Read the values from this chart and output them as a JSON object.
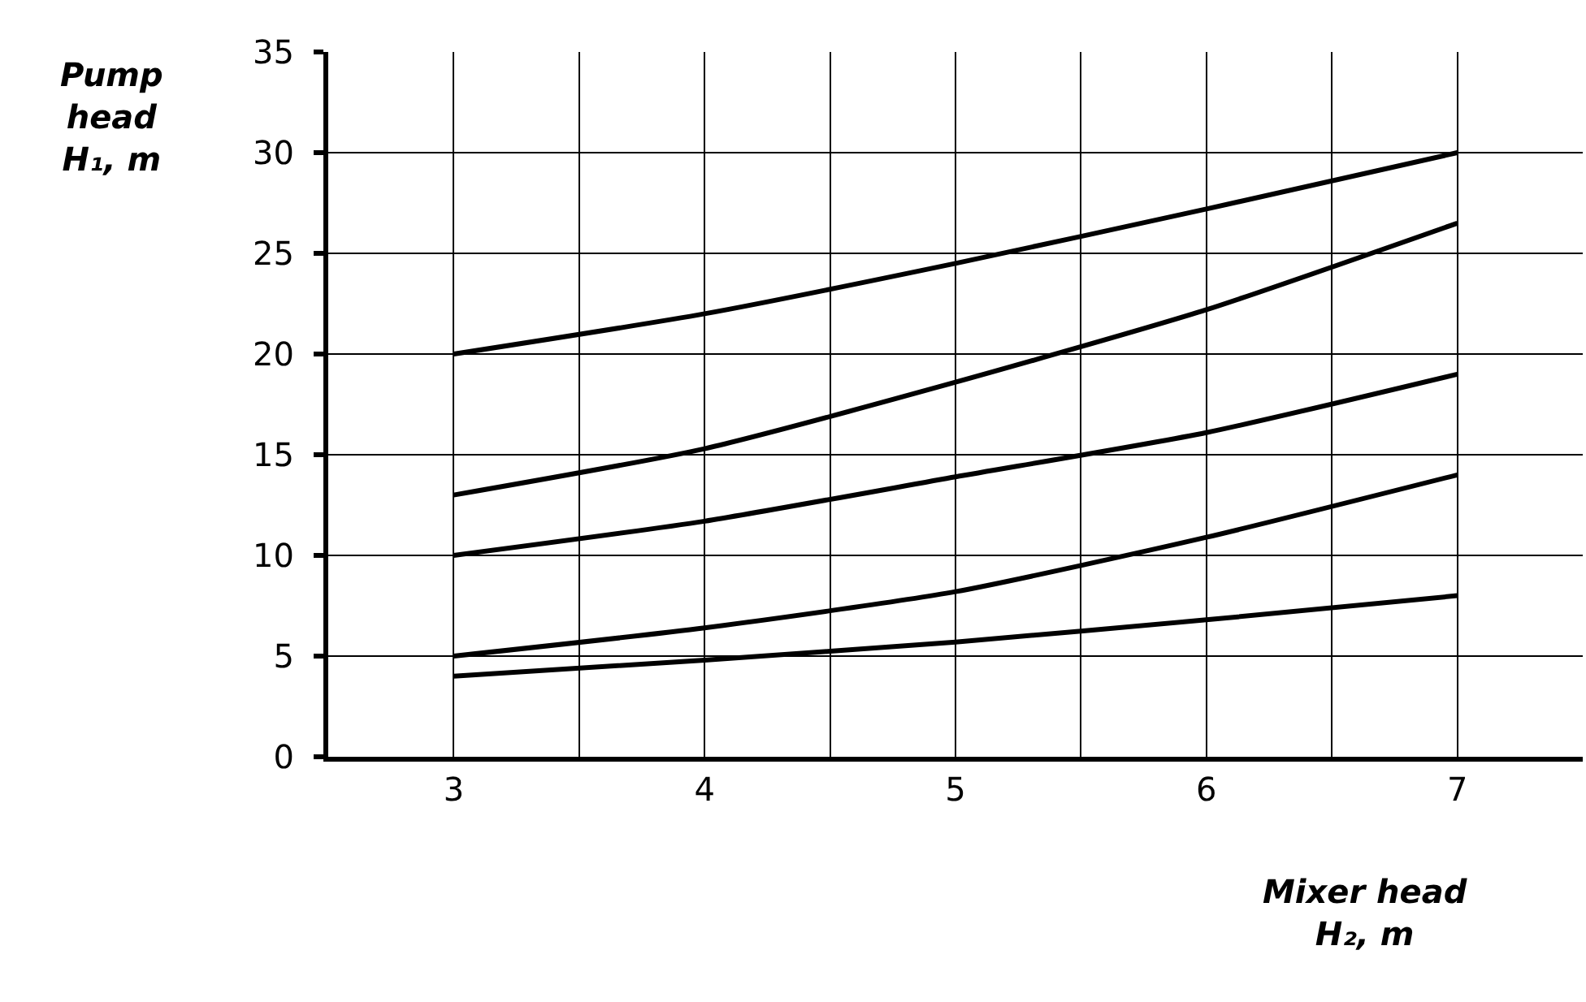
{
  "chart_data": {
    "type": "line",
    "xlabel": "Mixer head H₂, m",
    "ylabel": "Pump head H₁, m",
    "x": [
      3,
      4,
      5,
      6,
      7
    ],
    "series": [
      {
        "color": "#000000",
        "values": [
          20,
          22.0,
          24.5,
          27.2,
          30
        ]
      },
      {
        "color": "#000000",
        "values": [
          13,
          15.3,
          18.6,
          22.2,
          26.5
        ]
      },
      {
        "color": "#000000",
        "values": [
          10,
          11.7,
          13.9,
          16.1,
          19
        ]
      },
      {
        "color": "#000000",
        "values": [
          5,
          6.4,
          8.2,
          10.9,
          14
        ]
      },
      {
        "color": "#000000",
        "values": [
          4,
          4.8,
          5.7,
          6.8,
          8
        ]
      }
    ],
    "xlim": [
      2.5,
      7.5
    ],
    "xticks": [
      3,
      {
        "value": 3.5,
        "label": null
      },
      4,
      {
        "value": 4.5,
        "label": null
      },
      5,
      {
        "value": 5.5,
        "label": null
      },
      6,
      {
        "value": 6.5,
        "label": null
      },
      7
    ],
    "ylim": [
      0,
      35
    ],
    "yticks": [
      0,
      5,
      10,
      15,
      20,
      25,
      30,
      35
    ],
    "grid": true,
    "marker": "none",
    "line_style": "solid"
  }
}
